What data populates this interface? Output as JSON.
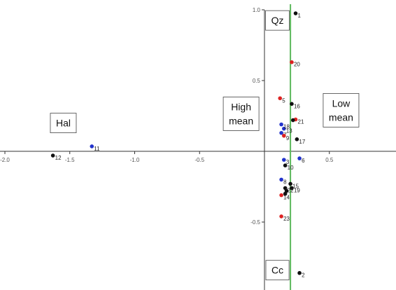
{
  "chart_data": {
    "type": "scatter",
    "title": "",
    "xlabel": "",
    "ylabel": "",
    "xlim": [
      -2.0,
      0.7
    ],
    "ylim": [
      -0.87,
      1.0
    ],
    "x_ticks": [
      {
        "value": -2.0,
        "label": "-2.0"
      },
      {
        "value": -1.5,
        "label": "-1.5"
      },
      {
        "value": -1.0,
        "label": "-1.0"
      },
      {
        "value": -0.5,
        "label": "-0.5"
      },
      {
        "value": 0.5,
        "label": "0.5"
      }
    ],
    "y_ticks": [
      {
        "value": 1.0,
        "label": "1.0"
      },
      {
        "value": 0.5,
        "label": "0.5"
      },
      {
        "value": -0.5,
        "label": "-0.5"
      }
    ],
    "reference_line": {
      "x": 0.2,
      "color": "#5cb85c"
    },
    "boundary_line": {
      "x": 0.0,
      "color": "#333333"
    },
    "colors": {
      "black": "#111111",
      "blue": "#2233cc",
      "red": "#dd2222"
    },
    "regions": [
      {
        "lines": [
          "Qz"
        ],
        "x": 0.1,
        "y": 0.925
      },
      {
        "lines": [
          "High",
          "mean"
        ],
        "x": -0.18,
        "y": 0.265
      },
      {
        "lines": [
          "Low",
          "mean"
        ],
        "x": 0.59,
        "y": 0.29
      },
      {
        "lines": [
          "Hal"
        ],
        "x": -1.55,
        "y": 0.2
      },
      {
        "lines": [
          "Cc"
        ],
        "x": 0.1,
        "y": -0.84
      }
    ],
    "points": [
      {
        "label": "1",
        "x": 0.24,
        "y": 0.975,
        "color": "black"
      },
      {
        "label": "2",
        "x": 0.27,
        "y": -0.86,
        "color": "black"
      },
      {
        "label": "3",
        "x": 0.15,
        "y": -0.06,
        "color": "blue"
      },
      {
        "label": "5",
        "x": 0.12,
        "y": 0.375,
        "color": "red"
      },
      {
        "label": "6",
        "x": 0.27,
        "y": -0.05,
        "color": "blue"
      },
      {
        "label": "7",
        "x": 0.13,
        "y": 0.13,
        "color": "blue"
      },
      {
        "label": "8",
        "x": 0.13,
        "y": -0.2,
        "color": "blue"
      },
      {
        "label": "9",
        "x": 0.15,
        "y": 0.11,
        "color": "red"
      },
      {
        "label": "10",
        "x": 0.16,
        "y": -0.1,
        "color": "black"
      },
      {
        "label": "11",
        "x": -1.33,
        "y": 0.035,
        "color": "blue"
      },
      {
        "label": "12",
        "x": -1.63,
        "y": -0.03,
        "color": "black"
      },
      {
        "label": "13",
        "x": 0.15,
        "y": 0.16,
        "color": "blue"
      },
      {
        "label": "14",
        "x": 0.13,
        "y": -0.31,
        "color": "red"
      },
      {
        "label": "15",
        "x": 0.2,
        "y": -0.23,
        "color": "black"
      },
      {
        "label": "16",
        "x": 0.21,
        "y": 0.335,
        "color": "black"
      },
      {
        "label": "17",
        "x": 0.25,
        "y": 0.085,
        "color": "black"
      },
      {
        "label": "18",
        "x": 0.13,
        "y": 0.19,
        "color": "blue"
      },
      {
        "label": "19",
        "x": 0.21,
        "y": -0.26,
        "color": "black"
      },
      {
        "label": "20",
        "x": 0.21,
        "y": 0.63,
        "color": "red"
      },
      {
        "label": "21",
        "x": 0.24,
        "y": 0.225,
        "color": "red"
      },
      {
        "label": "22",
        "x": 0.16,
        "y": -0.26,
        "color": "black"
      },
      {
        "label": "23",
        "x": 0.13,
        "y": -0.46,
        "color": "red"
      },
      {
        "label": "",
        "x": 0.22,
        "y": 0.22,
        "color": "black"
      },
      {
        "label": "",
        "x": 0.17,
        "y": -0.28,
        "color": "black"
      },
      {
        "label": "",
        "x": 0.16,
        "y": -0.3,
        "color": "black"
      }
    ]
  }
}
